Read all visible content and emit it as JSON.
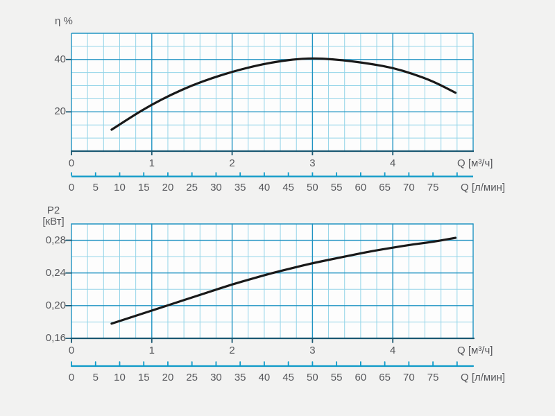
{
  "figure": {
    "description": "Pump performance curves: efficiency and power P2 versus flow Q"
  },
  "colors": {
    "page_bg": "#f2f2f1",
    "plot_bg": "#fdfdfd",
    "grid_minor": "#93d4e8",
    "grid_major": "#1f93c2",
    "axis_dark": "#1b5872",
    "secondary_axis": "#0f9ac8",
    "curve": "#191919",
    "text": "#57585c"
  },
  "chart_data": [
    {
      "type": "line",
      "name": "efficiency-vs-flow",
      "y_unit": "η %",
      "y_min": 5,
      "y_max": 50,
      "y_minor_step": 5,
      "y_ticks": [
        {
          "value": 20,
          "label": "20"
        },
        {
          "value": 40,
          "label": "40"
        }
      ],
      "x_min": 0,
      "x_max": 5,
      "x_minor_per_unit": 5,
      "x_ticks": [
        {
          "value": 0,
          "label": "0"
        },
        {
          "value": 1,
          "label": "1"
        },
        {
          "value": 2,
          "label": "2"
        },
        {
          "value": 3,
          "label": "3"
        },
        {
          "value": 4,
          "label": "4"
        }
      ],
      "x_title": "Q [м³/ч]",
      "secondary_axis": {
        "title": "Q [л/мин]",
        "lpm_per_m3h": 16.6667,
        "tick_step_lpm": 5,
        "tick_max_lpm": 80,
        "labels": [
          "0",
          "5",
          "10",
          "15",
          "20",
          "25",
          "30",
          "35",
          "40",
          "45",
          "50",
          "55",
          "60",
          "65",
          "70",
          "75"
        ]
      },
      "series": [
        {
          "name": "efficiency",
          "points": [
            [
              0.5,
              13.2
            ],
            [
              0.75,
              18.2
            ],
            [
              1.0,
              22.8
            ],
            [
              1.25,
              26.7
            ],
            [
              1.5,
              30.1
            ],
            [
              1.75,
              32.9
            ],
            [
              2.0,
              35.3
            ],
            [
              2.25,
              37.3
            ],
            [
              2.5,
              38.9
            ],
            [
              2.75,
              40.0
            ],
            [
              3.0,
              40.5
            ],
            [
              3.25,
              40.1
            ],
            [
              3.5,
              39.3
            ],
            [
              3.75,
              38.2
            ],
            [
              4.0,
              36.8
            ],
            [
              4.25,
              34.5
            ],
            [
              4.5,
              31.7
            ],
            [
              4.78,
              27.3
            ]
          ]
        }
      ]
    },
    {
      "type": "line",
      "name": "power-vs-flow",
      "y_unit_line1": "P2",
      "y_unit_line2": "[кВт]",
      "y_min": 0.16,
      "y_max": 0.3,
      "y_minor_step": 0.02,
      "y_ticks": [
        {
          "value": 0.16,
          "label": "0,16"
        },
        {
          "value": 0.2,
          "label": "0,20"
        },
        {
          "value": 0.24,
          "label": "0,24"
        },
        {
          "value": 0.28,
          "label": "0,28"
        }
      ],
      "x_min": 0,
      "x_max": 5,
      "x_minor_per_unit": 5,
      "x_ticks": [
        {
          "value": 0,
          "label": "0"
        },
        {
          "value": 1,
          "label": "1"
        },
        {
          "value": 2,
          "label": "2"
        },
        {
          "value": 3,
          "label": "3"
        },
        {
          "value": 4,
          "label": "4"
        }
      ],
      "x_title": "Q [м³/ч]",
      "secondary_axis": {
        "title": "Q [л/мин]",
        "lpm_per_m3h": 16.6667,
        "tick_step_lpm": 5,
        "tick_max_lpm": 80,
        "labels": [
          "0",
          "5",
          "10",
          "15",
          "20",
          "25",
          "30",
          "35",
          "40",
          "45",
          "50",
          "55",
          "60",
          "65",
          "70",
          "75"
        ]
      },
      "series": [
        {
          "name": "P2",
          "points": [
            [
              0.5,
              0.178
            ],
            [
              0.75,
              0.186
            ],
            [
              1.0,
              0.194
            ],
            [
              1.25,
              0.202
            ],
            [
              1.5,
              0.21
            ],
            [
              1.75,
              0.218
            ],
            [
              2.0,
              0.226
            ],
            [
              2.25,
              0.233
            ],
            [
              2.5,
              0.24
            ],
            [
              2.75,
              0.246
            ],
            [
              3.0,
              0.252
            ],
            [
              3.25,
              0.257
            ],
            [
              3.5,
              0.262
            ],
            [
              3.75,
              0.267
            ],
            [
              4.0,
              0.271
            ],
            [
              4.25,
              0.275
            ],
            [
              4.5,
              0.278
            ],
            [
              4.78,
              0.283
            ]
          ]
        }
      ]
    }
  ]
}
